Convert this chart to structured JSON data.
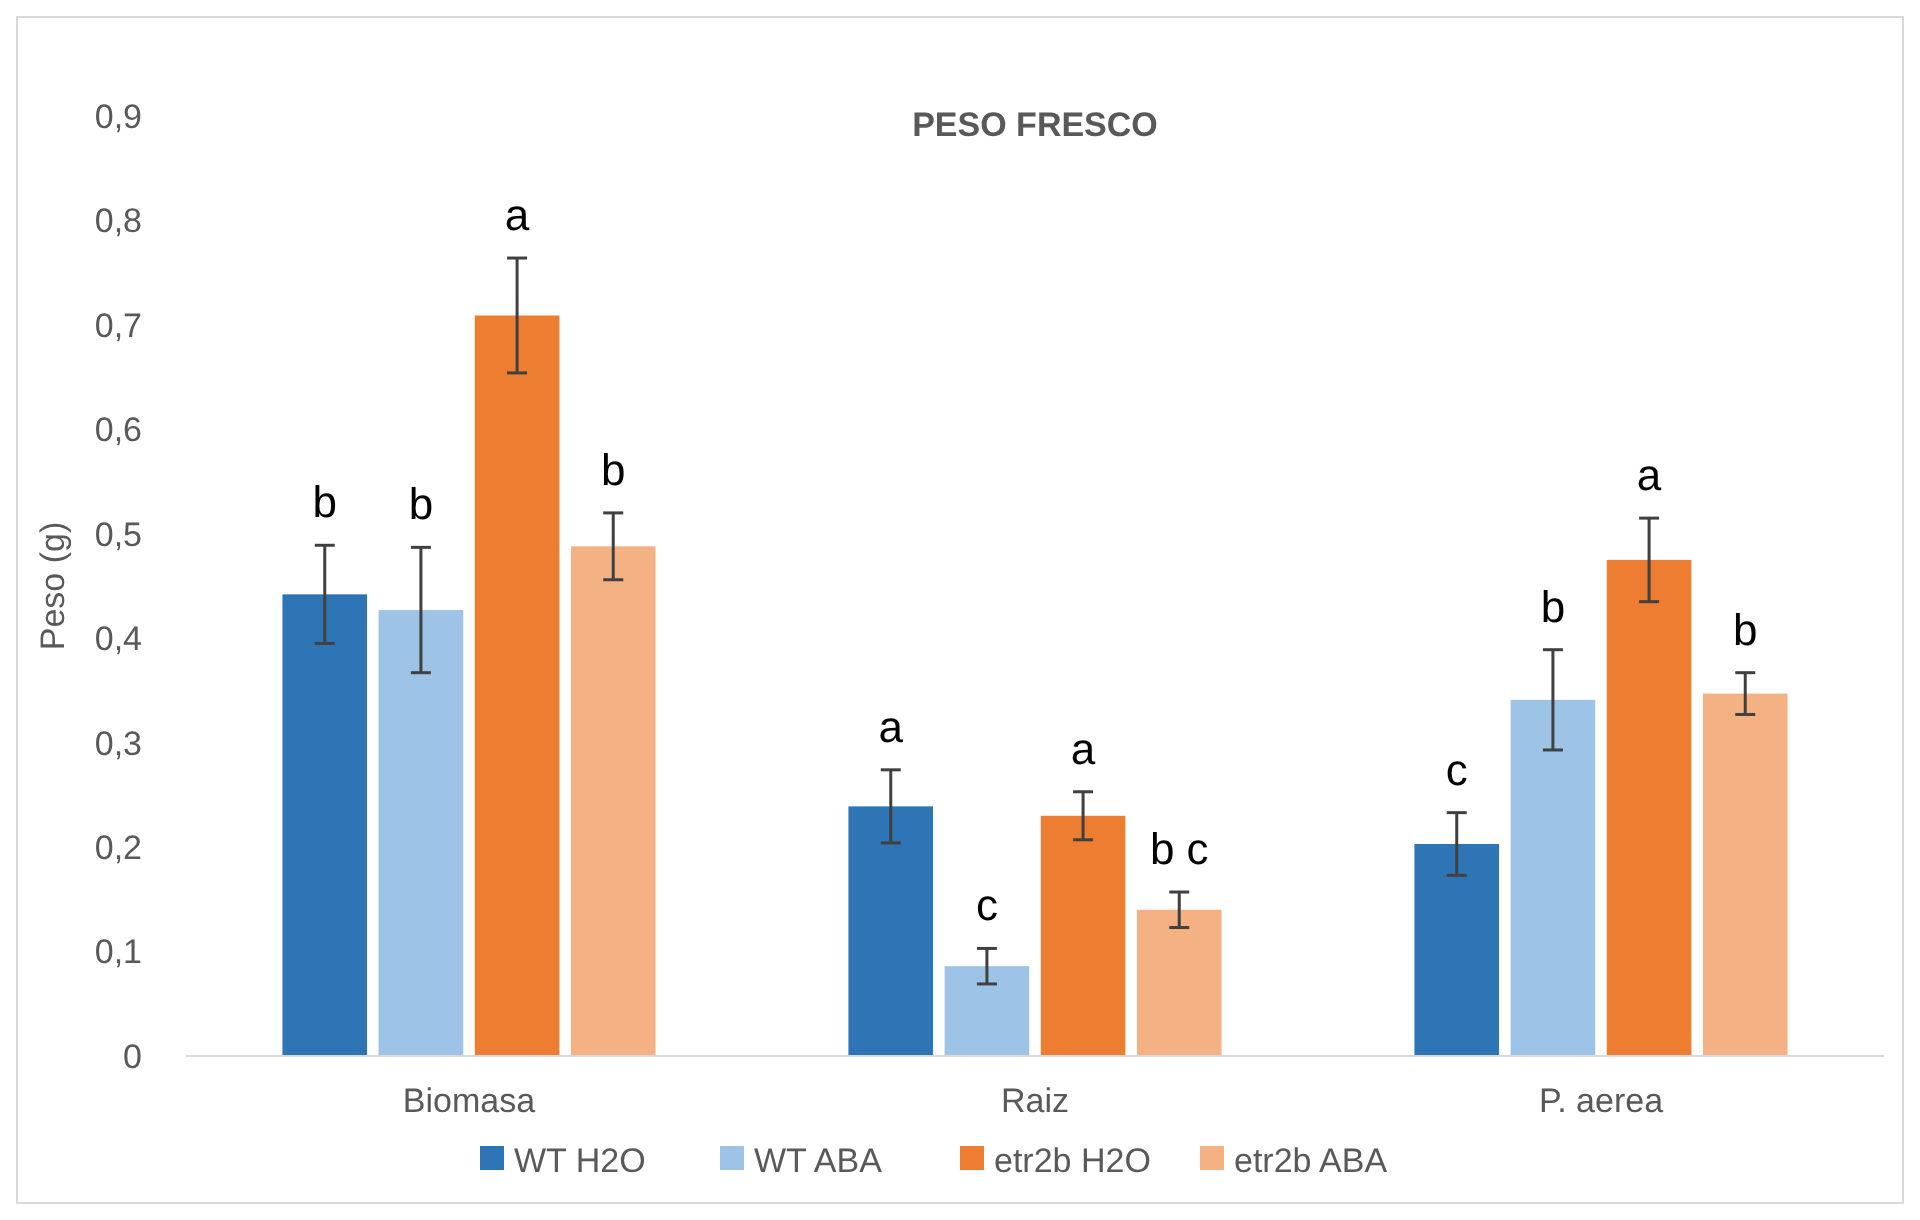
{
  "chart_data": {
    "type": "bar",
    "title": "PESO FRESCO",
    "ylabel": "Peso (g)",
    "categories": [
      "Biomasa",
      "Raiz",
      "P. aerea"
    ],
    "ylim": [
      0,
      0.9
    ],
    "yticks": [
      0,
      {
        "value": 0.1,
        "label": "0,1"
      },
      {
        "value": 0.2,
        "label": "0,2"
      },
      {
        "value": 0.3,
        "label": "0,3"
      },
      {
        "value": 0.4,
        "label": "0,4"
      },
      {
        "value": 0.5,
        "label": "0,5"
      },
      {
        "value": 0.6,
        "label": "0,6"
      },
      {
        "value": 0.7,
        "label": "0,7"
      },
      {
        "value": 0.8,
        "label": "0,8"
      },
      {
        "value": 0.9,
        "label": "0,9"
      }
    ],
    "grid": false,
    "legend": "bottom",
    "series": [
      {
        "name": "WT H2O",
        "color": "#2e75b6",
        "values": [
          0.442,
          0.239,
          0.203
        ],
        "errors": [
          0.047,
          0.035,
          0.03
        ],
        "value_labels": [
          "b",
          "a",
          "c"
        ]
      },
      {
        "name": "WT ABA",
        "color": "#9dc3e6",
        "values": [
          0.427,
          0.086,
          0.341
        ],
        "errors": [
          0.06,
          0.017,
          0.048
        ],
        "value_labels": [
          "b",
          "c",
          "b"
        ]
      },
      {
        "name": "etr2b H2O",
        "color": "#ed7d31",
        "values": [
          0.709,
          0.23,
          0.475
        ],
        "errors": [
          0.055,
          0.023,
          0.04
        ],
        "value_labels": [
          "a",
          "a",
          "a"
        ]
      },
      {
        "name": "etr2b ABA",
        "color": "#f4b183",
        "values": [
          0.488,
          0.14,
          0.347
        ],
        "errors": [
          0.032,
          0.017,
          0.02
        ],
        "value_labels": [
          "b",
          "b c",
          "b"
        ]
      }
    ]
  }
}
